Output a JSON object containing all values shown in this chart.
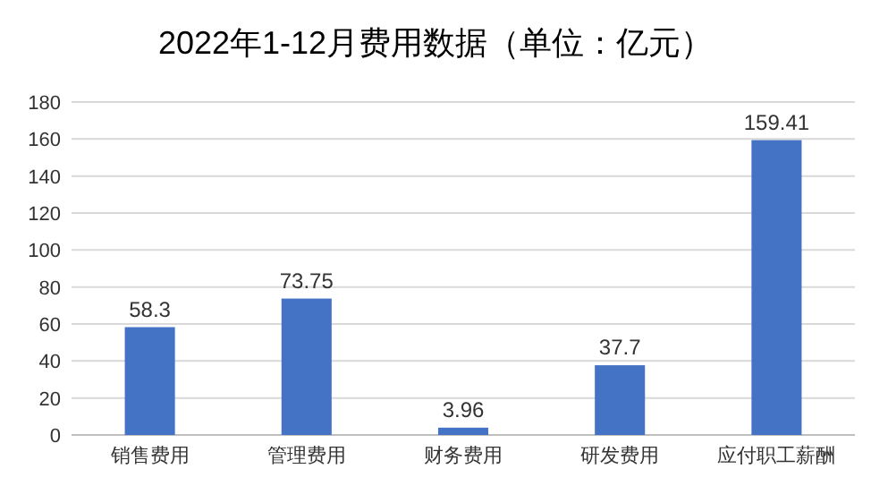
{
  "chart_data": {
    "type": "bar",
    "title": "2022年1-12月费用数据（单位：亿元）",
    "categories": [
      "销售费用",
      "管理费用",
      "财务费用",
      "研发费用",
      "应付职工薪酬"
    ],
    "values": [
      58.3,
      73.75,
      3.96,
      37.7,
      159.41
    ],
    "color": "#4472c4",
    "ylim": [
      0,
      180
    ],
    "yticks": [
      0,
      20,
      40,
      60,
      80,
      100,
      120,
      140,
      160,
      180
    ],
    "grid": "y",
    "data_labels": true
  }
}
